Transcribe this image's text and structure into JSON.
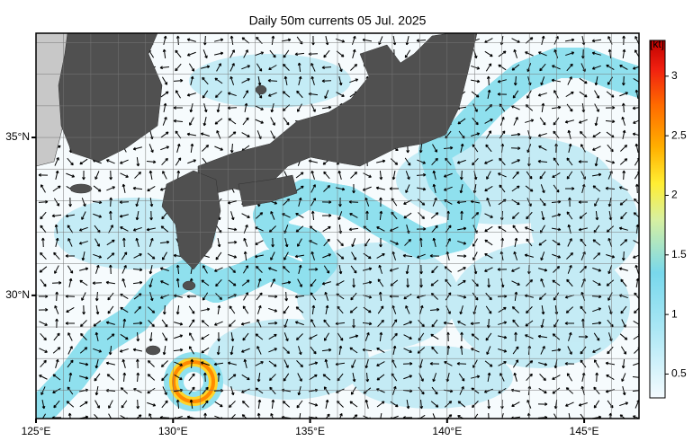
{
  "chart_data": {
    "type": "current-map",
    "title": "Daily 50m currents 05 Jul. 2025",
    "xlim": [
      125,
      147
    ],
    "ylim": [
      26.1,
      38.3
    ],
    "xticks": [
      {
        "value": 125,
        "label": "125°E"
      },
      {
        "value": 130,
        "label": "130°E"
      },
      {
        "value": 135,
        "label": "135°E"
      },
      {
        "value": 140,
        "label": "140°E"
      },
      {
        "value": 145,
        "label": "145°E"
      }
    ],
    "yticks": [
      {
        "value": 30,
        "label": "30°N"
      },
      {
        "value": 35,
        "label": "35°N"
      }
    ],
    "colorbar": {
      "label": "[kt]",
      "lim": [
        0.3,
        3.3
      ],
      "ticks": [
        0.5,
        1.0,
        1.5,
        2.0,
        2.5,
        3.0
      ]
    }
  }
}
